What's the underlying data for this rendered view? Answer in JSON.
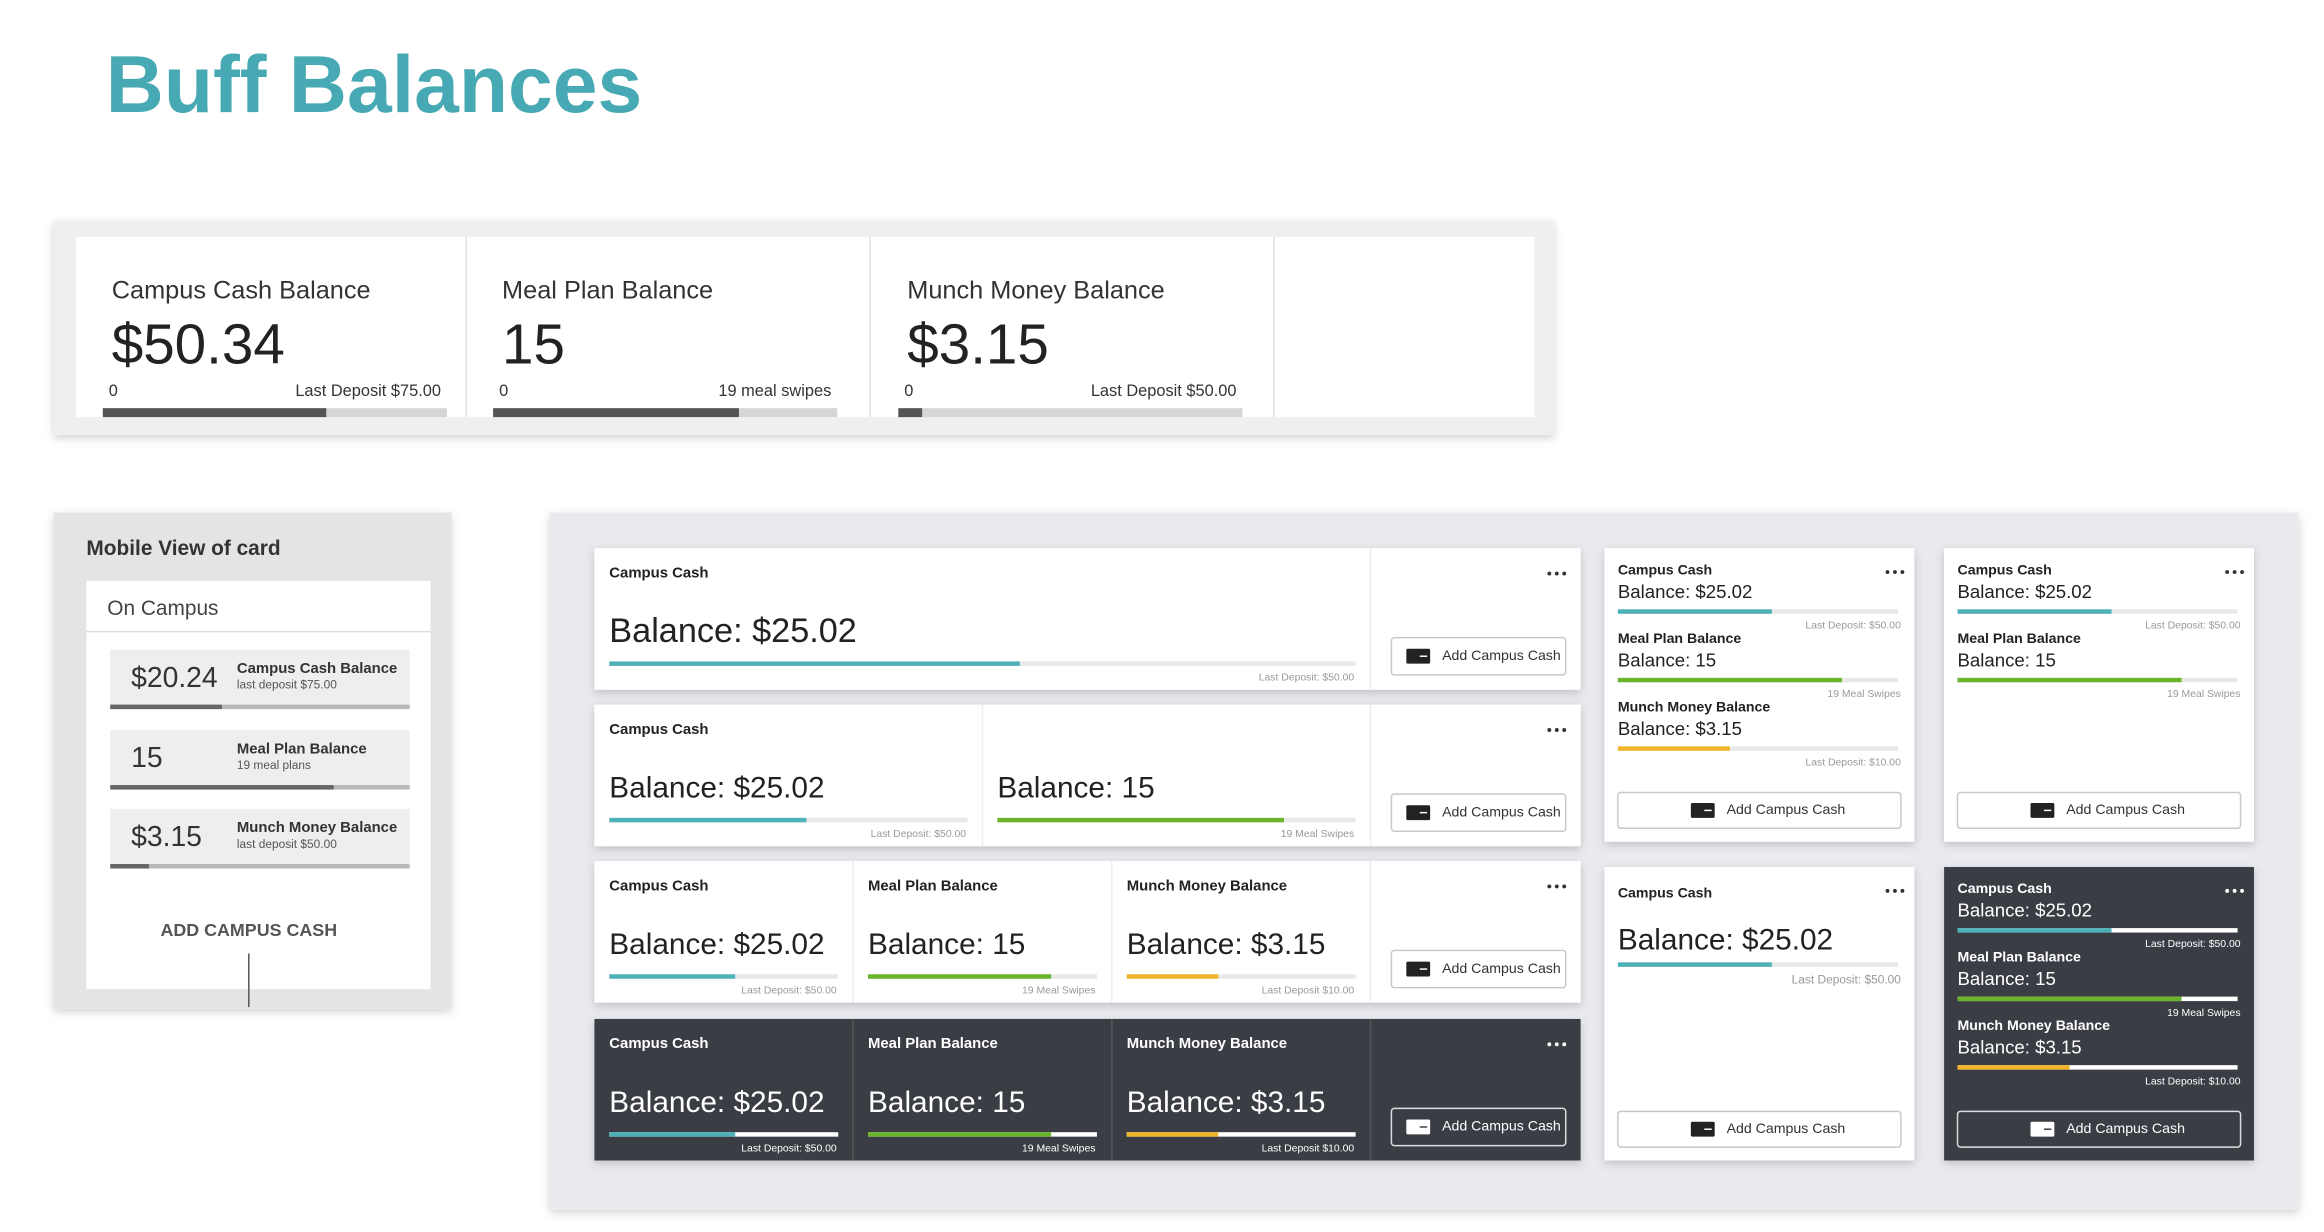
{
  "header": {
    "title": "Buff Balances"
  },
  "desktop_card": {
    "items": [
      {
        "label": "Campus Cash Balance",
        "value": "$50.34",
        "min": "0",
        "note": "Last Deposit $75.00"
      },
      {
        "label": "Meal Plan Balance",
        "value": "15",
        "min": "0",
        "note": "19 meal swipes"
      },
      {
        "label": "Munch Money Balance",
        "value": "$3.15",
        "min": "0",
        "note": "Last Deposit $50.00"
      }
    ]
  },
  "mobile": {
    "title": "Mobile View of card",
    "tab": "On Campus",
    "items": [
      {
        "value": "$20.24",
        "label": "Campus Cash Balance",
        "note": "last deposit $75.00"
      },
      {
        "value": "15",
        "label": "Meal Plan Balance",
        "note": "19 meal plans"
      },
      {
        "value": "$3.15",
        "label": "Munch Money Balance",
        "note": "last deposit $50.00"
      }
    ],
    "button": "ADD CAMPUS CASH"
  },
  "wide_rows": [
    {
      "theme": "light",
      "button": "Add Campus Cash",
      "cells": [
        {
          "title": "Campus Cash",
          "balance": "Balance: $25.02",
          "note": "Last Deposit: $50.00",
          "color": "#4db1b7"
        }
      ]
    },
    {
      "theme": "light",
      "button": "Add Campus Cash",
      "cells": [
        {
          "title": "Campus Cash",
          "balance": "Balance: $25.02",
          "note": "Last Deposit: $50.00",
          "color": "#4db1b7"
        },
        {
          "balance": "Balance: 15",
          "note": "19 Meal Swipes",
          "color": "#6bb52c"
        }
      ]
    },
    {
      "theme": "light",
      "button": "Add Campus Cash",
      "cells": [
        {
          "title": "Campus Cash",
          "balance": "Balance: $25.02",
          "note": "Last Deposit: $50.00",
          "color": "#4db1b7"
        },
        {
          "title": "Meal Plan Balance",
          "balance": "Balance: 15",
          "note": "19 Meal Swipes",
          "color": "#6bb52c"
        },
        {
          "title": "Munch Money Balance",
          "balance": "Balance: $3.15",
          "note": "Last Deposit $10.00",
          "color": "#f2b42a"
        }
      ]
    },
    {
      "theme": "dark",
      "button": "Add Campus Cash",
      "cells": [
        {
          "title": "Campus Cash",
          "balance": "Balance: $25.02",
          "note": "Last Deposit: $50.00",
          "color": "#4db1b7"
        },
        {
          "title": "Meal Plan Balance",
          "balance": "Balance: 15",
          "note": "19 Meal Swipes",
          "color": "#6bb52c"
        },
        {
          "title": "Munch Money Balance",
          "balance": "Balance: $3.15",
          "note": "Last Deposit $10.00",
          "color": "#f2b42a"
        }
      ]
    }
  ],
  "tall_cards": [
    {
      "theme": "light",
      "button": "Add Campus Cash",
      "items": [
        {
          "title": "Campus Cash",
          "balance": "Balance: $25.02",
          "note": "Last Deposit: $50.00",
          "color": "#4db1b7"
        },
        {
          "title": "Meal Plan Balance",
          "balance": "Balance: 15",
          "note": "19 Meal Swipes",
          "color": "#6bb52c"
        },
        {
          "title": "Munch Money Balance",
          "balance": "Balance: $3.15",
          "note": "Last Deposit: $10.00",
          "color": "#f2b42a"
        }
      ]
    },
    {
      "theme": "light",
      "button": "Add Campus Cash",
      "items": [
        {
          "title": "Campus Cash",
          "balance": "Balance: $25.02",
          "note": "Last Deposit: $50.00",
          "color": "#4db1b7"
        },
        {
          "title": "Meal Plan Balance",
          "balance": "Balance: 15",
          "note": "19 Meal Swipes",
          "color": "#6bb52c"
        }
      ]
    },
    {
      "theme": "light",
      "button": "Add Campus Cash",
      "items": [
        {
          "title": "Campus Cash",
          "balance": "Balance: $25.02",
          "note": "Last Deposit: $50.00",
          "color": "#4db1b7"
        }
      ]
    },
    {
      "theme": "dark",
      "button": "Add Campus Cash",
      "items": [
        {
          "title": "Campus Cash",
          "balance": "Balance: $25.02",
          "note": "Last Deposit: $50.00",
          "color": "#4db1b7"
        },
        {
          "title": "Meal Plan Balance",
          "balance": "Balance: 15",
          "note": "19 Meal Swipes",
          "color": "#6bb52c"
        },
        {
          "title": "Munch Money Balance",
          "balance": "Balance: $3.15",
          "note": "Last Deposit: $10.00",
          "color": "#f2b42a"
        }
      ]
    }
  ]
}
